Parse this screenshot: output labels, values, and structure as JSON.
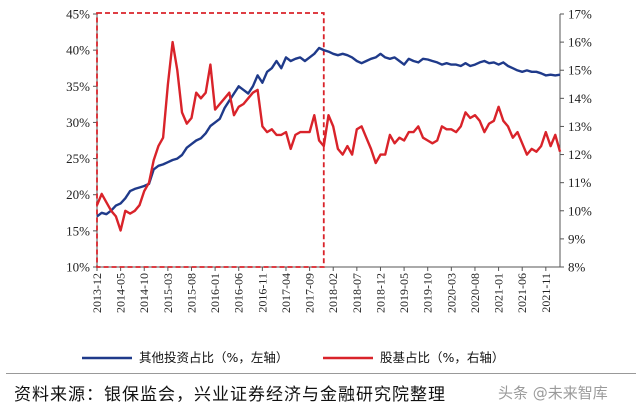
{
  "chart_data": {
    "type": "line",
    "left_axis": {
      "ticks": [
        "10%",
        "15%",
        "20%",
        "25%",
        "30%",
        "35%",
        "40%",
        "45%"
      ],
      "ylim": [
        10,
        45
      ]
    },
    "right_axis": {
      "ticks": [
        "8%",
        "9%",
        "10%",
        "11%",
        "12%",
        "13%",
        "14%",
        "15%",
        "16%",
        "17%"
      ],
      "ylim": [
        8,
        17
      ]
    },
    "x_tick_labels": [
      "2013-12",
      "2014-05",
      "2014-10",
      "2015-03",
      "2015-08",
      "2016-01",
      "2016-06",
      "2016-11",
      "2017-04",
      "2017-09",
      "2018-02",
      "2018-07",
      "2018-12",
      "2019-05",
      "2019-10",
      "2020-03",
      "2020-08",
      "2021-01",
      "2021-06",
      "2021-11"
    ],
    "x_start": "2013-12",
    "x_end": "2022-02",
    "highlight_box": {
      "from": "2013-12",
      "to": "2017-12"
    },
    "grid": false,
    "legend_position": "bottom",
    "series": [
      {
        "name": "其他投资占比（%，左轴）",
        "axis": "left",
        "color": "#1f3a8a",
        "points": [
          [
            "2013-12",
            17.0
          ],
          [
            "2014-01",
            17.5
          ],
          [
            "2014-02",
            17.3
          ],
          [
            "2014-03",
            17.8
          ],
          [
            "2014-04",
            18.5
          ],
          [
            "2014-05",
            18.8
          ],
          [
            "2014-06",
            19.5
          ],
          [
            "2014-07",
            20.5
          ],
          [
            "2014-08",
            20.8
          ],
          [
            "2014-09",
            21.0
          ],
          [
            "2014-10",
            21.2
          ],
          [
            "2014-11",
            21.5
          ],
          [
            "2014-12",
            23.5
          ],
          [
            "2015-01",
            24.0
          ],
          [
            "2015-02",
            24.2
          ],
          [
            "2015-03",
            24.5
          ],
          [
            "2015-04",
            24.8
          ],
          [
            "2015-05",
            25.0
          ],
          [
            "2015-06",
            25.5
          ],
          [
            "2015-07",
            26.5
          ],
          [
            "2015-08",
            27.0
          ],
          [
            "2015-09",
            27.5
          ],
          [
            "2015-10",
            27.8
          ],
          [
            "2015-11",
            28.5
          ],
          [
            "2015-12",
            29.5
          ],
          [
            "2016-01",
            30.0
          ],
          [
            "2016-02",
            30.5
          ],
          [
            "2016-03",
            32.0
          ],
          [
            "2016-04",
            33.0
          ],
          [
            "2016-05",
            34.0
          ],
          [
            "2016-06",
            35.0
          ],
          [
            "2016-07",
            34.5
          ],
          [
            "2016-08",
            34.0
          ],
          [
            "2016-09",
            35.0
          ],
          [
            "2016-10",
            36.5
          ],
          [
            "2016-11",
            35.5
          ],
          [
            "2016-12",
            37.0
          ],
          [
            "2017-01",
            37.5
          ],
          [
            "2017-02",
            38.5
          ],
          [
            "2017-03",
            37.5
          ],
          [
            "2017-04",
            39.0
          ],
          [
            "2017-05",
            38.5
          ],
          [
            "2017-06",
            38.8
          ],
          [
            "2017-07",
            39.0
          ],
          [
            "2017-08",
            38.5
          ],
          [
            "2017-09",
            39.0
          ],
          [
            "2017-10",
            39.5
          ],
          [
            "2017-11",
            40.3
          ],
          [
            "2017-12",
            40.0
          ],
          [
            "2018-01",
            39.8
          ],
          [
            "2018-02",
            39.5
          ],
          [
            "2018-03",
            39.3
          ],
          [
            "2018-04",
            39.5
          ],
          [
            "2018-05",
            39.3
          ],
          [
            "2018-06",
            39.0
          ],
          [
            "2018-07",
            38.5
          ],
          [
            "2018-08",
            38.2
          ],
          [
            "2018-09",
            38.5
          ],
          [
            "2018-10",
            38.8
          ],
          [
            "2018-11",
            39.0
          ],
          [
            "2018-12",
            39.5
          ],
          [
            "2019-01",
            39.0
          ],
          [
            "2019-02",
            38.8
          ],
          [
            "2019-03",
            39.0
          ],
          [
            "2019-04",
            38.5
          ],
          [
            "2019-05",
            38.0
          ],
          [
            "2019-06",
            38.8
          ],
          [
            "2019-07",
            38.5
          ],
          [
            "2019-08",
            38.3
          ],
          [
            "2019-09",
            38.8
          ],
          [
            "2019-10",
            38.7
          ],
          [
            "2019-11",
            38.5
          ],
          [
            "2019-12",
            38.3
          ],
          [
            "2020-01",
            38.0
          ],
          [
            "2020-02",
            38.2
          ],
          [
            "2020-03",
            38.0
          ],
          [
            "2020-04",
            38.0
          ],
          [
            "2020-05",
            37.8
          ],
          [
            "2020-06",
            38.2
          ],
          [
            "2020-07",
            37.8
          ],
          [
            "2020-08",
            38.0
          ],
          [
            "2020-09",
            38.3
          ],
          [
            "2020-10",
            38.5
          ],
          [
            "2020-11",
            38.2
          ],
          [
            "2020-12",
            38.3
          ],
          [
            "2021-01",
            38.0
          ],
          [
            "2021-02",
            38.3
          ],
          [
            "2021-03",
            37.8
          ],
          [
            "2021-04",
            37.5
          ],
          [
            "2021-05",
            37.2
          ],
          [
            "2021-06",
            37.0
          ],
          [
            "2021-07",
            37.2
          ],
          [
            "2021-08",
            37.0
          ],
          [
            "2021-09",
            37.0
          ],
          [
            "2021-10",
            36.8
          ],
          [
            "2021-11",
            36.5
          ],
          [
            "2021-12",
            36.6
          ],
          [
            "2022-01",
            36.5
          ],
          [
            "2022-02",
            36.6
          ]
        ]
      },
      {
        "name": "股基占比（%，右轴）",
        "axis": "right",
        "color": "#d9232a",
        "points": [
          [
            "2013-12",
            10.2
          ],
          [
            "2014-01",
            10.6
          ],
          [
            "2014-02",
            10.3
          ],
          [
            "2014-03",
            10.0
          ],
          [
            "2014-04",
            9.8
          ],
          [
            "2014-05",
            9.3
          ],
          [
            "2014-06",
            10.0
          ],
          [
            "2014-07",
            9.9
          ],
          [
            "2014-08",
            10.0
          ],
          [
            "2014-09",
            10.2
          ],
          [
            "2014-10",
            10.7
          ],
          [
            "2014-11",
            11.0
          ],
          [
            "2014-12",
            11.8
          ],
          [
            "2015-01",
            12.3
          ],
          [
            "2015-02",
            12.6
          ],
          [
            "2015-03",
            14.5
          ],
          [
            "2015-04",
            16.0
          ],
          [
            "2015-05",
            15.0
          ],
          [
            "2015-06",
            13.5
          ],
          [
            "2015-07",
            13.1
          ],
          [
            "2015-08",
            13.3
          ],
          [
            "2015-09",
            14.2
          ],
          [
            "2015-10",
            14.0
          ],
          [
            "2015-11",
            14.2
          ],
          [
            "2015-12",
            15.2
          ],
          [
            "2016-01",
            13.6
          ],
          [
            "2016-02",
            13.8
          ],
          [
            "2016-03",
            14.0
          ],
          [
            "2016-04",
            14.2
          ],
          [
            "2016-05",
            13.4
          ],
          [
            "2016-06",
            13.7
          ],
          [
            "2016-07",
            13.8
          ],
          [
            "2016-08",
            14.0
          ],
          [
            "2016-09",
            14.2
          ],
          [
            "2016-10",
            14.3
          ],
          [
            "2016-11",
            13.0
          ],
          [
            "2016-12",
            12.8
          ],
          [
            "2017-01",
            12.9
          ],
          [
            "2017-02",
            12.7
          ],
          [
            "2017-03",
            12.7
          ],
          [
            "2017-04",
            12.8
          ],
          [
            "2017-05",
            12.2
          ],
          [
            "2017-06",
            12.7
          ],
          [
            "2017-07",
            12.8
          ],
          [
            "2017-08",
            12.8
          ],
          [
            "2017-09",
            12.8
          ],
          [
            "2017-10",
            13.4
          ],
          [
            "2017-11",
            12.5
          ],
          [
            "2017-12",
            12.3
          ],
          [
            "2018-01",
            13.4
          ],
          [
            "2018-02",
            13.0
          ],
          [
            "2018-03",
            12.2
          ],
          [
            "2018-04",
            12.0
          ],
          [
            "2018-05",
            12.3
          ],
          [
            "2018-06",
            12.0
          ],
          [
            "2018-07",
            12.9
          ],
          [
            "2018-08",
            13.0
          ],
          [
            "2018-09",
            12.6
          ],
          [
            "2018-10",
            12.2
          ],
          [
            "2018-11",
            11.7
          ],
          [
            "2018-12",
            12.0
          ],
          [
            "2019-01",
            12.0
          ],
          [
            "2019-02",
            12.7
          ],
          [
            "2019-03",
            12.4
          ],
          [
            "2019-04",
            12.6
          ],
          [
            "2019-05",
            12.5
          ],
          [
            "2019-06",
            12.8
          ],
          [
            "2019-07",
            12.8
          ],
          [
            "2019-08",
            13.0
          ],
          [
            "2019-09",
            12.6
          ],
          [
            "2019-10",
            12.5
          ],
          [
            "2019-11",
            12.4
          ],
          [
            "2019-12",
            12.5
          ],
          [
            "2020-01",
            13.0
          ],
          [
            "2020-02",
            12.9
          ],
          [
            "2020-03",
            12.9
          ],
          [
            "2020-04",
            12.8
          ],
          [
            "2020-05",
            13.0
          ],
          [
            "2020-06",
            13.5
          ],
          [
            "2020-07",
            13.3
          ],
          [
            "2020-08",
            13.4
          ],
          [
            "2020-09",
            13.2
          ],
          [
            "2020-10",
            12.8
          ],
          [
            "2020-11",
            13.1
          ],
          [
            "2020-12",
            13.2
          ],
          [
            "2021-01",
            13.7
          ],
          [
            "2021-02",
            13.2
          ],
          [
            "2021-03",
            13.0
          ],
          [
            "2021-04",
            12.6
          ],
          [
            "2021-05",
            12.8
          ],
          [
            "2021-06",
            12.4
          ],
          [
            "2021-07",
            12.0
          ],
          [
            "2021-08",
            12.2
          ],
          [
            "2021-09",
            12.1
          ],
          [
            "2021-10",
            12.3
          ],
          [
            "2021-11",
            12.8
          ],
          [
            "2021-12",
            12.3
          ],
          [
            "2022-01",
            12.7
          ],
          [
            "2022-02",
            12.1
          ]
        ]
      }
    ]
  },
  "source_text": "资料来源：银保监会，兴业证券经济与金融研究院整理",
  "watermark_text": "头条 @未来智库"
}
